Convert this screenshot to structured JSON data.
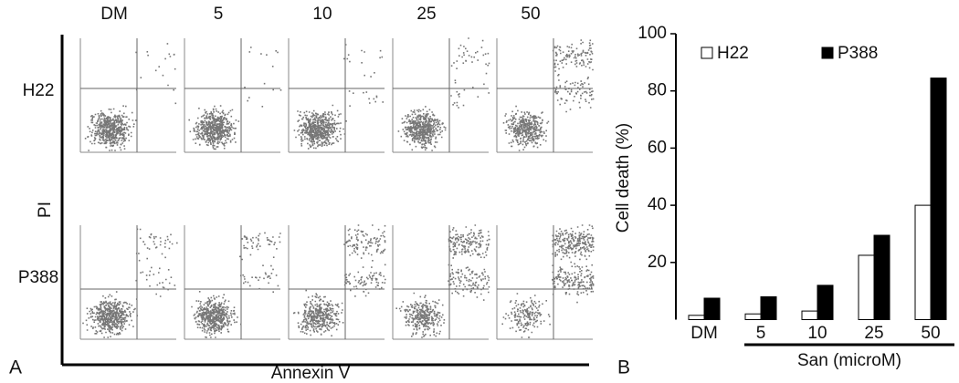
{
  "panel_a": {
    "label": "A",
    "columns": [
      "DM",
      "5",
      "10",
      "25",
      "50"
    ],
    "rows": [
      "H22",
      "P388"
    ],
    "ylabel": "PI",
    "xlabel": "Annexin V"
  },
  "chart_data": {
    "type": "bar",
    "panel_label": "B",
    "ylabel": "Cell death (%)",
    "xlabel": "San (microM)",
    "categories": [
      "DM",
      "5",
      "10",
      "25",
      "50"
    ],
    "series": [
      {
        "name": "H22",
        "color": "#ffffff",
        "values": [
          1.5,
          2,
          3,
          22.5,
          40
        ]
      },
      {
        "name": "P388",
        "color": "#000000",
        "values": [
          7.5,
          8,
          12,
          29.5,
          84.5
        ]
      }
    ],
    "ylim": [
      0,
      100
    ],
    "yticks": [
      20,
      40,
      60,
      80,
      100
    ],
    "legend": "top"
  }
}
